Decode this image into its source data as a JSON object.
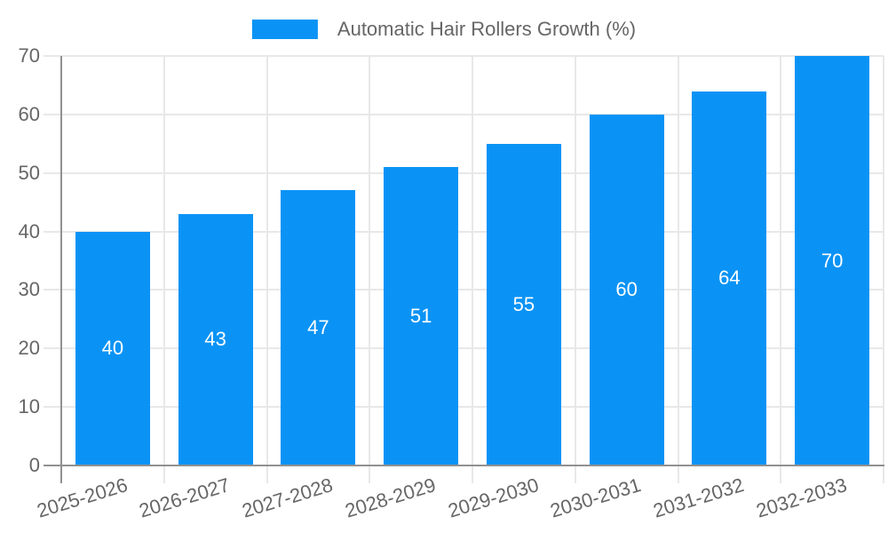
{
  "chart_data": {
    "type": "bar",
    "title": "Automatic Hair Rollers Growth (%)",
    "categories": [
      "2025-2026",
      "2026-2027",
      "2027-2028",
      "2028-2029",
      "2029-2030",
      "2030-2031",
      "2031-2032",
      "2032-2033"
    ],
    "values": [
      40,
      43,
      47,
      51,
      55,
      60,
      64,
      70
    ],
    "series": [
      {
        "name": "Automatic Hair Rollers Growth (%)",
        "values": [
          40,
          43,
          47,
          51,
          55,
          60,
          64,
          70
        ]
      }
    ],
    "xlabel": "",
    "ylabel": "",
    "ylim": [
      0,
      70
    ],
    "ytick_step": 10,
    "yticks": [
      0,
      10,
      20,
      30,
      40,
      50,
      60,
      70
    ],
    "grid": true,
    "legend_position": "top-center",
    "x_label_rotation_deg": -17,
    "bar_color": "#0a93f5",
    "bar_label_color": "#ffffff",
    "axis_text_color": "#666666",
    "grid_color": "#e8e8e8",
    "axis_line_color": "#919191",
    "background_color": "#ffffff"
  },
  "legend": {
    "label": "Automatic Hair Rollers Growth (%)"
  }
}
